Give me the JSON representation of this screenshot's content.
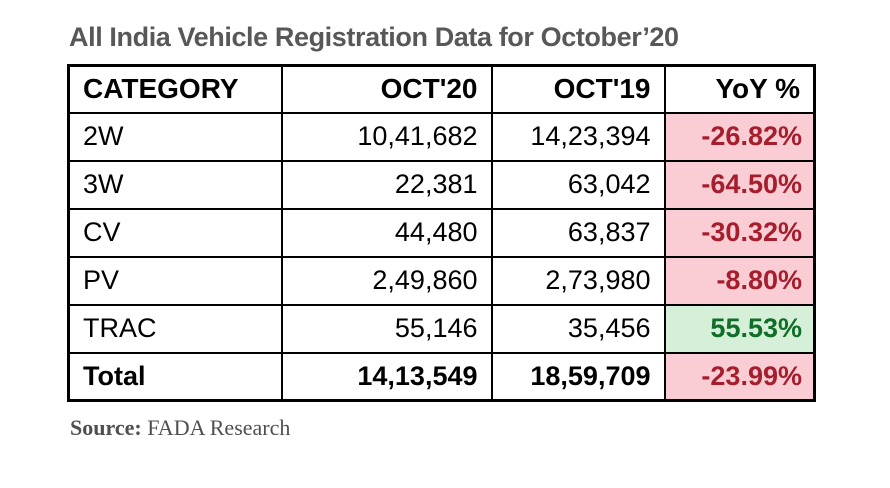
{
  "title": "All India Vehicle Registration Data for October’20",
  "table": {
    "columns": [
      "CATEGORY",
      "OCT'20",
      "OCT'19",
      "YoY %"
    ],
    "rows": [
      {
        "category": "2W",
        "oct20": "10,41,682",
        "oct19": "14,23,394",
        "yoy": "-26.82%",
        "trend": "negative"
      },
      {
        "category": "3W",
        "oct20": "22,381",
        "oct19": "63,042",
        "yoy": "-64.50%",
        "trend": "negative"
      },
      {
        "category": "CV",
        "oct20": "44,480",
        "oct19": "63,837",
        "yoy": "-30.32%",
        "trend": "negative"
      },
      {
        "category": "PV",
        "oct20": "2,49,860",
        "oct19": "2,73,980",
        "yoy": "-8.80%",
        "trend": "negative"
      },
      {
        "category": "TRAC",
        "oct20": "55,146",
        "oct19": "35,456",
        "yoy": "55.53%",
        "trend": "positive"
      },
      {
        "category": "Total",
        "oct20": "14,13,549",
        "oct19": "18,59,709",
        "yoy": "-23.99%",
        "trend": "negative"
      }
    ]
  },
  "source": {
    "label": "Source:",
    "text": " FADA Research"
  },
  "colors": {
    "title_text": "#58585a",
    "source_text": "#4f4f51",
    "border_color": "#000000",
    "negative_bg": "#f9cdd3",
    "negative_text": "#a41e2d",
    "positive_bg": "#d6efd8",
    "positive_text": "#116e28"
  },
  "chart_data": {
    "type": "table",
    "title": "All India Vehicle Registration Data for October'20",
    "columns": [
      "CATEGORY",
      "OCT'20",
      "OCT'19",
      "YoY %"
    ],
    "rows": [
      {
        "category": "2W",
        "oct20": 1041682,
        "oct19": 1423394,
        "yoy_pct": -26.82
      },
      {
        "category": "3W",
        "oct20": 22381,
        "oct19": 63042,
        "yoy_pct": -64.5
      },
      {
        "category": "CV",
        "oct20": 44480,
        "oct19": 63837,
        "yoy_pct": -30.32
      },
      {
        "category": "PV",
        "oct20": 249860,
        "oct19": 273980,
        "yoy_pct": -8.8
      },
      {
        "category": "TRAC",
        "oct20": 55146,
        "oct19": 35456,
        "yoy_pct": 55.53
      },
      {
        "category": "Total",
        "oct20": 1413549,
        "oct19": 1859709,
        "yoy_pct": -23.99
      }
    ],
    "source": "FADA Research",
    "legend_position": "none",
    "grid": true
  }
}
